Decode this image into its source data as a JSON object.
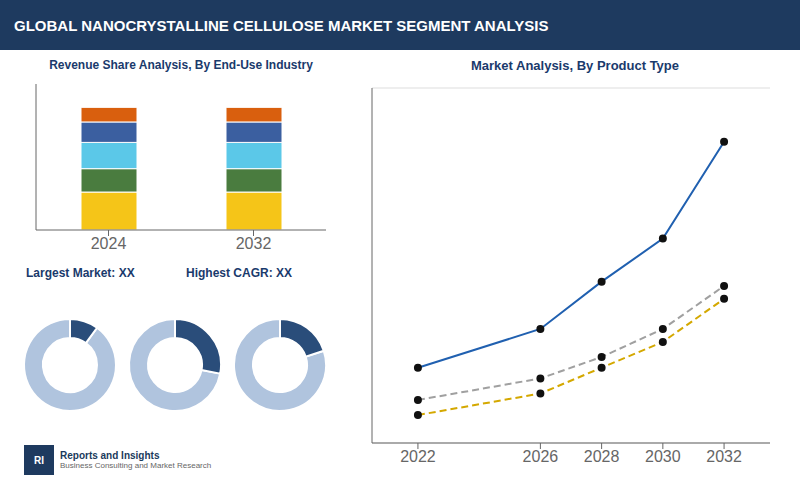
{
  "title": "GLOBAL NANOCRYSTALLINE CELLULOSE MARKET SEGMENT ANALYSIS",
  "annotations": [
    "RI",
    "Reports and Insights",
    "Business Consulting and Market Research"
  ],
  "chart_data": [
    {
      "type": "bar",
      "title": "Revenue Share Analysis, By End-Use Industry",
      "categories": [
        "2024",
        "2032"
      ],
      "series": [
        {
          "color": "#f5c518",
          "values": [
            26,
            26
          ]
        },
        {
          "color": "#4a7c3f",
          "values": [
            16,
            16
          ]
        },
        {
          "color": "#5bc8e8",
          "values": [
            18,
            18
          ]
        },
        {
          "color": "#3b5fa0",
          "values": [
            14,
            14
          ]
        },
        {
          "color": "#d95f0e",
          "values": [
            10,
            10
          ]
        }
      ],
      "stacked": true,
      "ylim": [
        0,
        100
      ],
      "tick_labels": "x",
      "annotations": [
        "Largest Market: XX",
        "Highest CAGR: XX"
      ]
    },
    {
      "type": "pie",
      "values": [
        0.9,
        0.1
      ],
      "colors": [
        "#b0c4de",
        "#2a4d7a"
      ]
    },
    {
      "type": "pie",
      "values": [
        0.72,
        0.28
      ],
      "colors": [
        "#b0c4de",
        "#2a4d7a"
      ]
    },
    {
      "type": "pie",
      "values": [
        0.8,
        0.2
      ],
      "colors": [
        "#b0c4de",
        "#2a4d7a"
      ]
    },
    {
      "type": "line",
      "title": "Market Analysis, By Product Type",
      "x": [
        2022,
        2026,
        2028,
        2030,
        2032
      ],
      "series": [
        {
          "color": "#2060b0",
          "values": [
            4.0,
            5.8,
            8.0,
            10.0,
            14.5
          ],
          "line_style": "solid",
          "marker": "circle"
        },
        {
          "color": "#a0a0a0",
          "values": [
            2.5,
            3.5,
            4.5,
            5.8,
            7.8
          ],
          "line_style": "dashed",
          "marker": "circle"
        },
        {
          "color": "#d4a800",
          "values": [
            1.8,
            2.8,
            4.0,
            5.2,
            7.2
          ],
          "line_style": "dashed",
          "marker": "circle"
        }
      ],
      "xlim": [
        2020.5,
        2033.5
      ],
      "xticks": [
        2022,
        2026,
        2028,
        2030,
        2032
      ],
      "ylim": [
        0.5,
        17
      ],
      "yticks": [
        2.5,
        5,
        7.5,
        10,
        12.5,
        15
      ],
      "grid": true,
      "tick_labels": "x"
    }
  ]
}
